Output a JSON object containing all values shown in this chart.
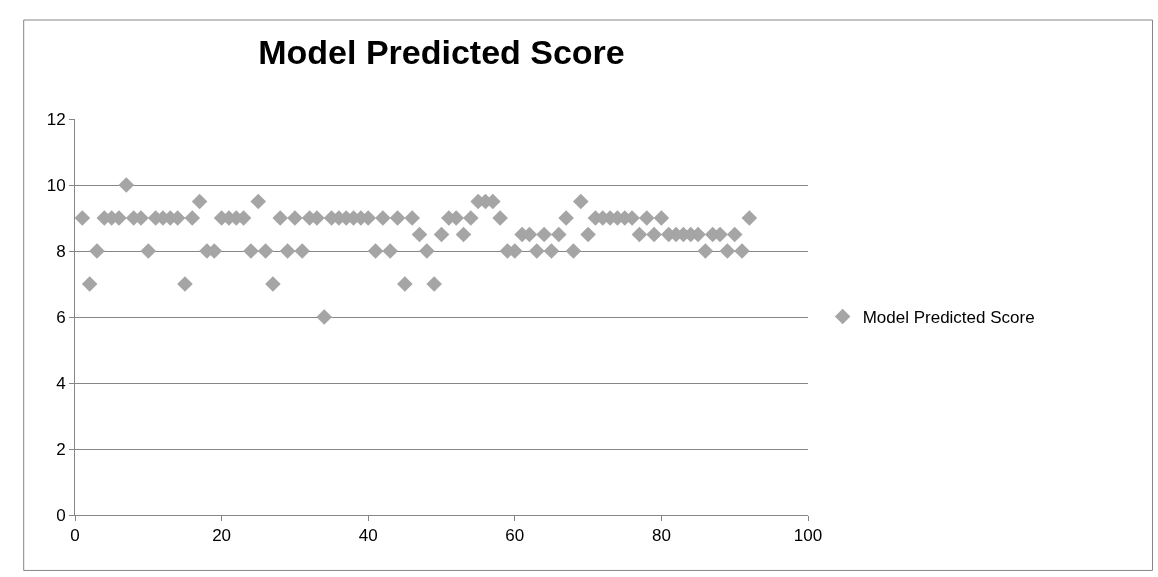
{
  "chart_data": {
    "type": "scatter",
    "title": "Model Predicted Score",
    "x": [
      1,
      2,
      3,
      4,
      5,
      6,
      7,
      8,
      9,
      10,
      11,
      12,
      13,
      14,
      15,
      16,
      17,
      18,
      19,
      20,
      21,
      22,
      23,
      24,
      25,
      26,
      27,
      28,
      29,
      30,
      31,
      32,
      33,
      34,
      35,
      36,
      37,
      38,
      39,
      40,
      41,
      42,
      43,
      44,
      45,
      46,
      47,
      48,
      49,
      50,
      51,
      52,
      53,
      54,
      55,
      56,
      57,
      58,
      59,
      60,
      61,
      62,
      63,
      64,
      65,
      66,
      67,
      68,
      69,
      70,
      71,
      72,
      73,
      74,
      75,
      76,
      77,
      78,
      79,
      80,
      81,
      82,
      83,
      84,
      85,
      86,
      87,
      88,
      89,
      90,
      91,
      92
    ],
    "series": [
      {
        "name": "Model Predicted Score",
        "color": "#a5a5a5",
        "values": [
          9,
          7,
          8,
          9,
          9,
          9,
          10,
          9,
          9,
          8,
          9,
          9,
          9,
          9,
          7,
          9,
          9.5,
          8,
          8,
          9,
          9,
          9,
          9,
          8,
          9.5,
          8,
          7,
          9,
          8,
          9,
          8,
          9,
          9,
          6,
          9,
          9,
          9,
          9,
          9,
          9,
          8,
          9,
          8,
          9,
          7,
          9,
          8.5,
          8,
          7,
          8.5,
          9,
          9,
          8.5,
          9,
          9.5,
          9.5,
          9.5,
          9,
          8,
          8,
          8.5,
          8.5,
          8,
          8.5,
          8,
          8.5,
          9,
          8,
          9.5,
          8.5,
          9,
          9,
          9,
          9,
          9,
          9,
          8.5,
          9,
          8.5,
          9,
          8.5,
          8.5,
          8.5,
          8.5,
          8.5,
          8,
          8.5,
          8.5,
          8,
          8.5,
          8,
          9
        ]
      }
    ],
    "xlim": [
      0,
      100
    ],
    "xticks": [
      0,
      20,
      40,
      60,
      80,
      100
    ],
    "ylim": [
      0,
      12
    ],
    "yticks": [
      0,
      2,
      4,
      6,
      8,
      10,
      12
    ],
    "grid": "y",
    "legend": "right",
    "marker": "diamond"
  }
}
